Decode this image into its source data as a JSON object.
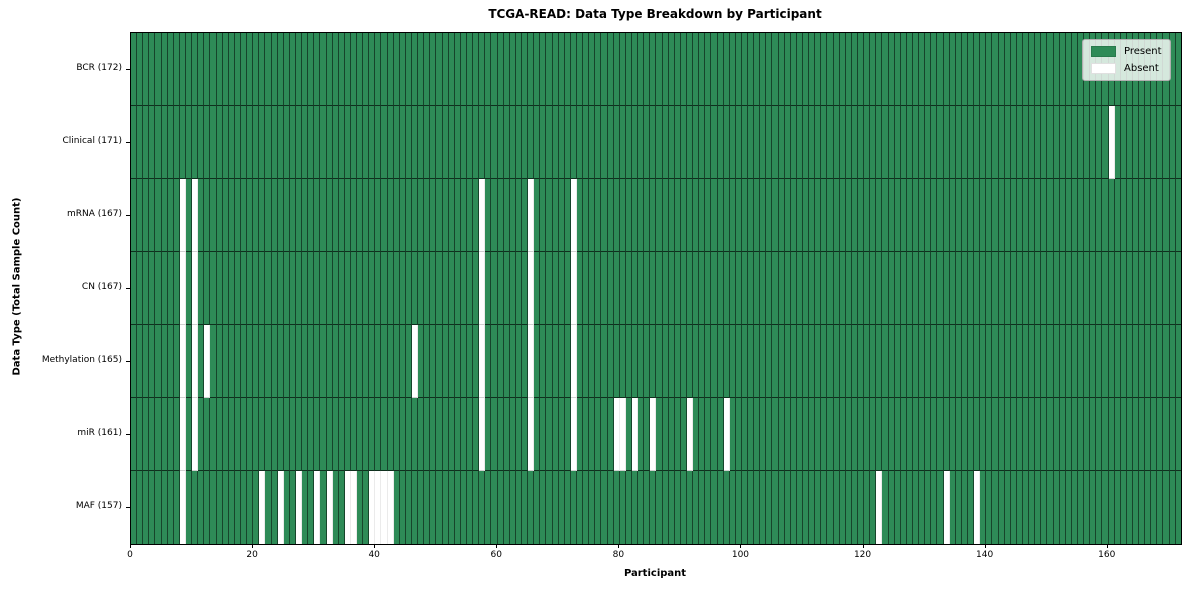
{
  "title": "TCGA-READ: Data Type Breakdown by Participant",
  "xlabel": "Participant",
  "ylabel": "Data Type (Total Sample Count)",
  "legend": {
    "present": "Present",
    "absent": "Absent"
  },
  "colors": {
    "present": "#2e8b57",
    "absent": "#ffffff"
  },
  "chart_data": {
    "type": "heatmap",
    "x_axis": {
      "label": "Participant",
      "range": [
        0,
        172
      ],
      "ticks": [
        0,
        20,
        40,
        60,
        80,
        100,
        120,
        140,
        160
      ]
    },
    "n_participants": 172,
    "cell_states": [
      "Present",
      "Absent"
    ],
    "rows": [
      {
        "label": "BCR (172)",
        "data_type": "BCR",
        "present_count": 172,
        "absent_participants": []
      },
      {
        "label": "Clinical (171)",
        "data_type": "Clinical",
        "present_count": 171,
        "absent_participants": [
          160
        ]
      },
      {
        "label": "mRNA (167)",
        "data_type": "mRNA",
        "present_count": 167,
        "absent_participants": [
          8,
          10,
          57,
          65,
          72
        ]
      },
      {
        "label": "CN (167)",
        "data_type": "CN",
        "present_count": 167,
        "absent_participants": [
          8,
          10,
          57,
          65,
          72
        ]
      },
      {
        "label": "Methylation (165)",
        "data_type": "Methylation",
        "present_count": 165,
        "absent_participants": [
          8,
          10,
          12,
          46,
          57,
          65,
          72
        ]
      },
      {
        "label": "miR (161)",
        "data_type": "miR",
        "present_count": 161,
        "absent_participants": [
          8,
          10,
          57,
          65,
          72,
          79,
          80,
          82,
          85,
          91,
          97
        ]
      },
      {
        "label": "MAF (157)",
        "data_type": "MAF",
        "present_count": 157,
        "absent_participants": [
          8,
          21,
          24,
          27,
          30,
          32,
          35,
          36,
          39,
          40,
          41,
          42,
          122,
          133,
          138
        ]
      }
    ]
  }
}
